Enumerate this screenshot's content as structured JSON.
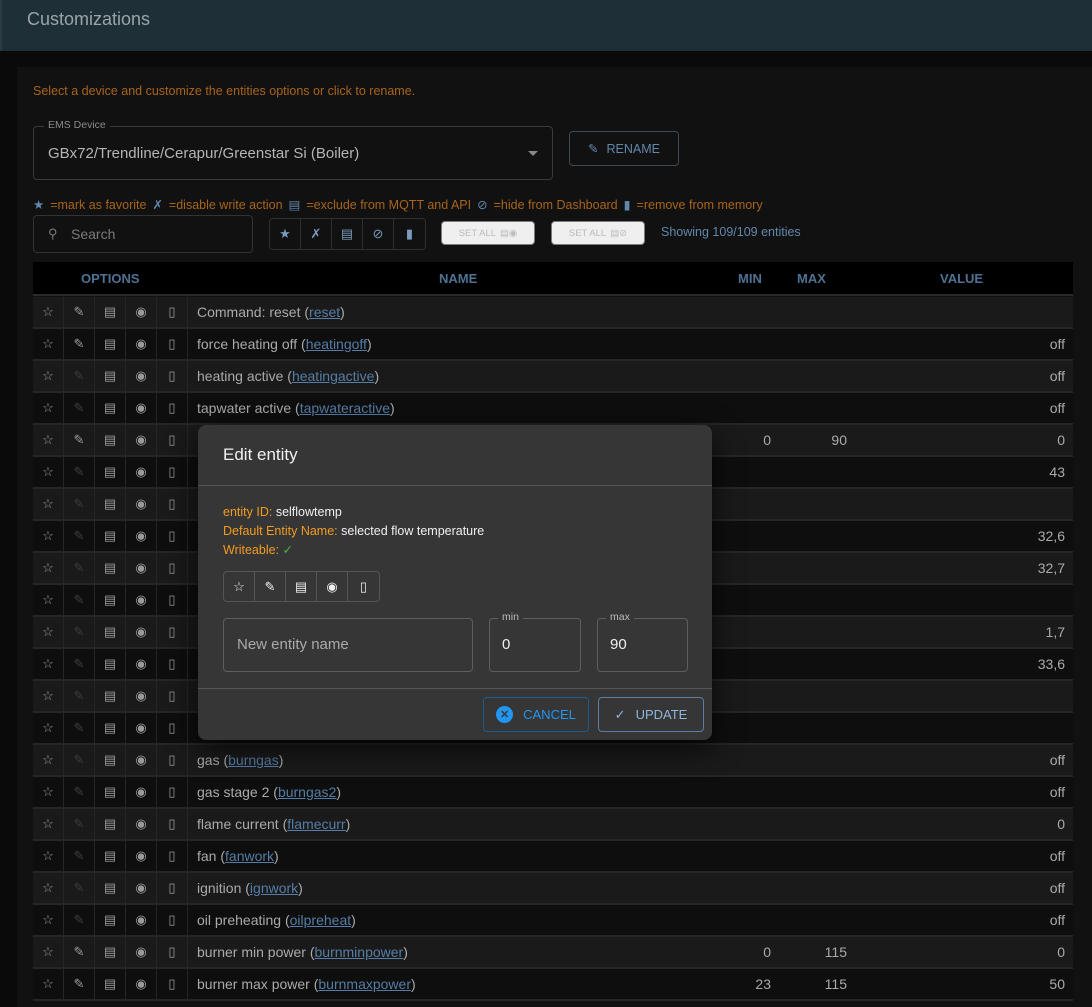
{
  "app": {
    "title": "Customizations"
  },
  "hint": "Select a device and customize the entities options or click to rename.",
  "device": {
    "label": "EMS Device",
    "value": "GBx72/Trendline/Cerapur/Greenstar Si (Boiler)"
  },
  "rename_label": "RENAME",
  "legend": [
    "=mark as favorite",
    "=disable write action",
    "=exclude from MQTT and API",
    "=hide from Dashboard",
    "=remove from memory"
  ],
  "search": {
    "placeholder": "Search"
  },
  "set_all_label": "SET ALL",
  "showing": "Showing 109/109 entities",
  "columns": {
    "options": "OPTIONS",
    "name": "NAME",
    "min": "MIN",
    "max": "MAX",
    "value": "VALUE"
  },
  "rows": [
    {
      "name": "Command: reset (",
      "id": "reset",
      "min": "",
      "max": "",
      "value": "",
      "editable": true
    },
    {
      "name": "force heating off (",
      "id": "heatingoff",
      "min": "",
      "max": "",
      "value": "off",
      "editable": true
    },
    {
      "name": "heating active (",
      "id": "heatingactive",
      "min": "",
      "max": "",
      "value": "off",
      "editable": false
    },
    {
      "name": "tapwater active (",
      "id": "tapwateractive",
      "min": "",
      "max": "",
      "value": "off",
      "editable": false
    },
    {
      "name": "",
      "id": "",
      "min": "0",
      "max": "90",
      "value": "0",
      "editable": true
    },
    {
      "name": "",
      "id": "",
      "min": "",
      "max": "",
      "value": "43",
      "editable": false
    },
    {
      "name": "",
      "id": "",
      "min": "",
      "max": "",
      "value": "",
      "editable": false
    },
    {
      "name": "",
      "id": "",
      "min": "",
      "max": "",
      "value": "32,6",
      "editable": false
    },
    {
      "name": "",
      "id": "",
      "min": "",
      "max": "",
      "value": "32,7",
      "editable": false
    },
    {
      "name": "",
      "id": "",
      "min": "",
      "max": "",
      "value": "",
      "editable": false
    },
    {
      "name": "",
      "id": "",
      "min": "",
      "max": "",
      "value": "1,7",
      "editable": false
    },
    {
      "name": "",
      "id": "",
      "min": "",
      "max": "",
      "value": "33,6",
      "editable": false
    },
    {
      "name": "",
      "id": "",
      "min": "",
      "max": "",
      "value": "",
      "editable": false
    },
    {
      "name": "",
      "id": "",
      "min": "",
      "max": "",
      "value": "",
      "editable": false
    },
    {
      "name": "gas (",
      "id": "burngas",
      "min": "",
      "max": "",
      "value": "off",
      "editable": false
    },
    {
      "name": "gas stage 2 (",
      "id": "burngas2",
      "min": "",
      "max": "",
      "value": "off",
      "editable": false
    },
    {
      "name": "flame current (",
      "id": "flamecurr",
      "min": "",
      "max": "",
      "value": "0",
      "editable": false
    },
    {
      "name": "fan (",
      "id": "fanwork",
      "min": "",
      "max": "",
      "value": "off",
      "editable": false
    },
    {
      "name": "ignition (",
      "id": "ignwork",
      "min": "",
      "max": "",
      "value": "off",
      "editable": false
    },
    {
      "name": "oil preheating (",
      "id": "oilpreheat",
      "min": "",
      "max": "",
      "value": "off",
      "editable": false
    },
    {
      "name": "burner min power (",
      "id": "burnminpower",
      "min": "0",
      "max": "115",
      "value": "0",
      "editable": true
    },
    {
      "name": "burner max power (",
      "id": "burnmaxpower",
      "min": "23",
      "max": "115",
      "value": "50",
      "editable": true
    }
  ],
  "dialog": {
    "title": "Edit entity",
    "entity_id_label": "entity ID:",
    "entity_id": "selflowtemp",
    "default_name_label": "Default Entity Name:",
    "default_name": "selected flow temperature",
    "writeable_label": "Writeable:",
    "writeable_mark": "✓",
    "name_placeholder": "New entity name",
    "min_label": "min",
    "min_value": "0",
    "max_label": "max",
    "max_value": "90",
    "cancel": "CANCEL",
    "update": "UPDATE"
  },
  "colors": {
    "accent": "#2196f3",
    "warning": "#f39c1f",
    "success": "#4caf50"
  }
}
